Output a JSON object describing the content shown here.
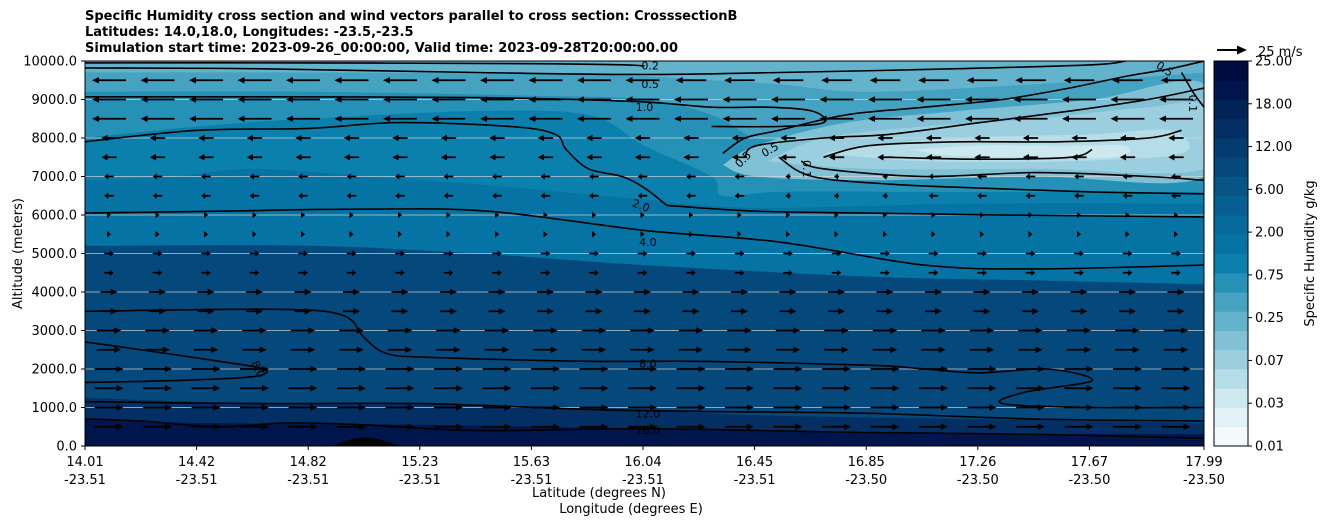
{
  "chart_data": {
    "type": "contour",
    "title": [
      "Specific Humidity cross section and wind vectors parallel to cross section: CrosssectionB",
      "Latitudes: 14.0,18.0, Longitudes: -23.5,-23.5",
      "Simulation start time: 2023-09-26_00:00:00, Valid time: 2023-09-28T20:00:00.00"
    ],
    "ylabel": "Altitude (meters)",
    "xlabel_lat": "Latitude (degrees N)",
    "xlabel_lon": "Longitude (degrees E)",
    "ylim": [
      0,
      10000
    ],
    "yticks": [
      "0.0",
      "1000.0",
      "2000.0",
      "3000.0",
      "4000.0",
      "5000.0",
      "6000.0",
      "7000.0",
      "8000.0",
      "9000.0",
      "10000.0"
    ],
    "xticks": [
      {
        "lat": "14.01",
        "lon": "-23.51"
      },
      {
        "lat": "14.42",
        "lon": "-23.51"
      },
      {
        "lat": "14.82",
        "lon": "-23.51"
      },
      {
        "lat": "15.23",
        "lon": "-23.51"
      },
      {
        "lat": "15.63",
        "lon": "-23.51"
      },
      {
        "lat": "16.04",
        "lon": "-23.51"
      },
      {
        "lat": "16.45",
        "lon": "-23.51"
      },
      {
        "lat": "16.85",
        "lon": "-23.50"
      },
      {
        "lat": "17.26",
        "lon": "-23.50"
      },
      {
        "lat": "17.67",
        "lon": "-23.50"
      },
      {
        "lat": "17.99",
        "lon": "-23.50"
      }
    ],
    "colorbar": {
      "label": "Specific Humidity g/kg",
      "ticks": [
        "0.01",
        "0.03",
        "0.07",
        "0.25",
        "0.75",
        "2.00",
        "6.00",
        "12.00",
        "18.00",
        "25.00"
      ]
    },
    "contour_levels": [
      "0.1",
      "0.2",
      "0.5",
      "1.0",
      "2.0",
      "4.0",
      "8.0",
      "12.0",
      "16.0"
    ],
    "wind_reference": "25 m/s",
    "wind_rows_m": [
      500,
      1000,
      1500,
      2000,
      2500,
      3000,
      3500,
      4000,
      4500,
      5000,
      5500,
      6000,
      6500,
      7000,
      7500,
      8000,
      8500,
      9000,
      9500
    ]
  },
  "colors": {
    "scale": [
      "#f4fafc",
      "#e1f1f5",
      "#cde8ef",
      "#b5dde8",
      "#9bcfdf",
      "#80c1d6",
      "#64b3cc",
      "#45a2c1",
      "#2591b7",
      "#0b80ad",
      "#0574a4",
      "#056a9c",
      "#065f92",
      "#075487",
      "#05487c",
      "#053c70",
      "#042f64",
      "#022358",
      "#00154b",
      "#000b40"
    ]
  }
}
